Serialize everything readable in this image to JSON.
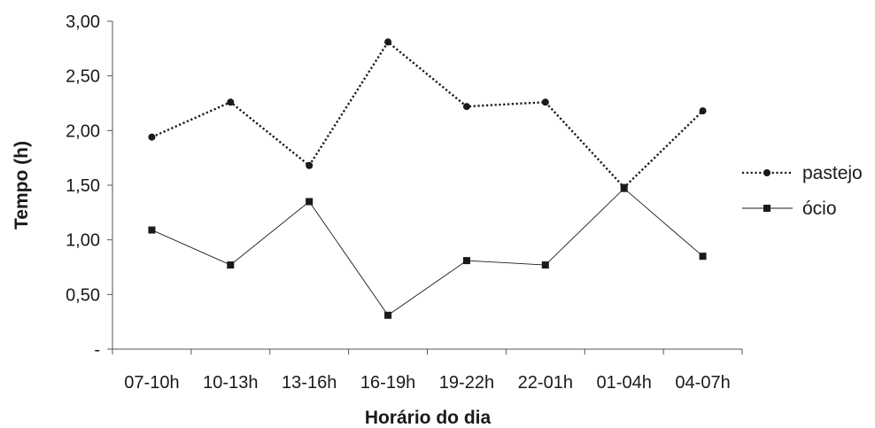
{
  "chart_data": {
    "type": "line",
    "title": "",
    "xlabel": "Horário do dia",
    "ylabel": "Tempo (h)",
    "categories": [
      "07-10h",
      "10-13h",
      "13-16h",
      "16-19h",
      "19-22h",
      "22-01h",
      "01-04h",
      "04-07h"
    ],
    "ylim": [
      0,
      3
    ],
    "yticks": [
      0,
      0.5,
      1,
      1.5,
      2,
      2.5,
      3
    ],
    "ytick_labels": [
      "-",
      "0,50",
      "1,00",
      "1,50",
      "2,00",
      "2,50",
      "3,00"
    ],
    "grid": false,
    "legend_position": "right",
    "series": [
      {
        "name": "pastejo",
        "values": [
          1.94,
          2.26,
          1.68,
          2.81,
          2.22,
          2.26,
          1.48,
          2.18
        ],
        "line_style": "dotted",
        "marker": "circle",
        "color": "#1a1a1a"
      },
      {
        "name": "ócio",
        "values": [
          1.09,
          0.77,
          1.35,
          0.31,
          0.81,
          0.77,
          1.47,
          0.85
        ],
        "line_style": "solid",
        "marker": "square",
        "color": "#1a1a1a"
      }
    ]
  }
}
